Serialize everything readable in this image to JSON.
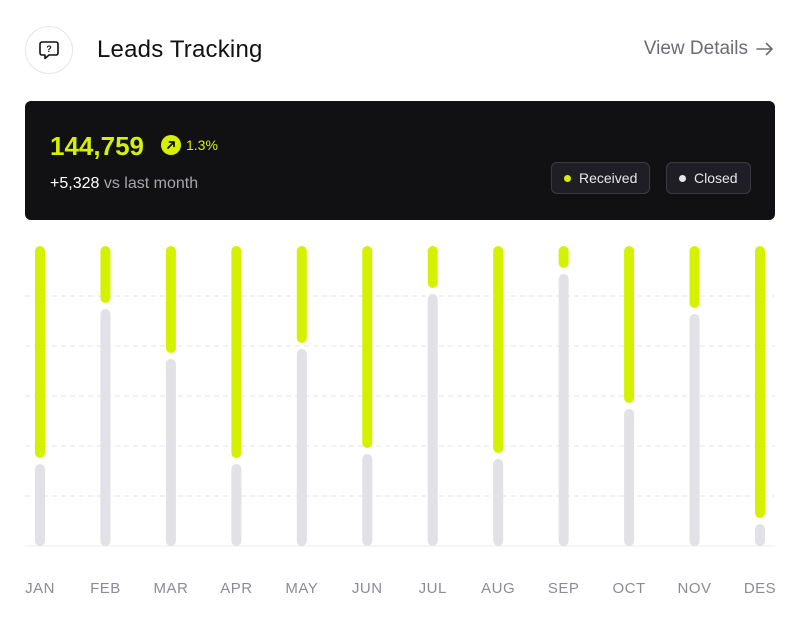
{
  "header": {
    "title": "Leads Tracking",
    "view_details": "View Details",
    "icon": "chat-question-icon"
  },
  "summary": {
    "total": "144,759",
    "trend_pct": "1.3%",
    "delta": "+5,328",
    "delta_label": "vs last month"
  },
  "legend": {
    "received": "Received",
    "closed": "Closed"
  },
  "colors": {
    "received": "#d4f200",
    "closed": "#e1e1e6",
    "panel_bg": "#111114"
  },
  "chart_data": {
    "type": "bar",
    "stacked": true,
    "categories": [
      "JAN",
      "FEB",
      "MAR",
      "APR",
      "MAY",
      "JUN",
      "JUL",
      "AUG",
      "SEP",
      "OCT",
      "NOV",
      "DES"
    ],
    "series": [
      {
        "name": "Received",
        "values": [
          43,
          12,
          22,
          43,
          20,
          41,
          9,
          42,
          5,
          32,
          13,
          55
        ]
      },
      {
        "name": "Closed",
        "values": [
          16,
          47,
          37,
          16,
          39,
          18,
          50,
          17,
          54,
          27,
          46,
          4
        ]
      }
    ],
    "ylim": [
      0,
      60
    ],
    "grid": true,
    "legend": "top-right"
  }
}
